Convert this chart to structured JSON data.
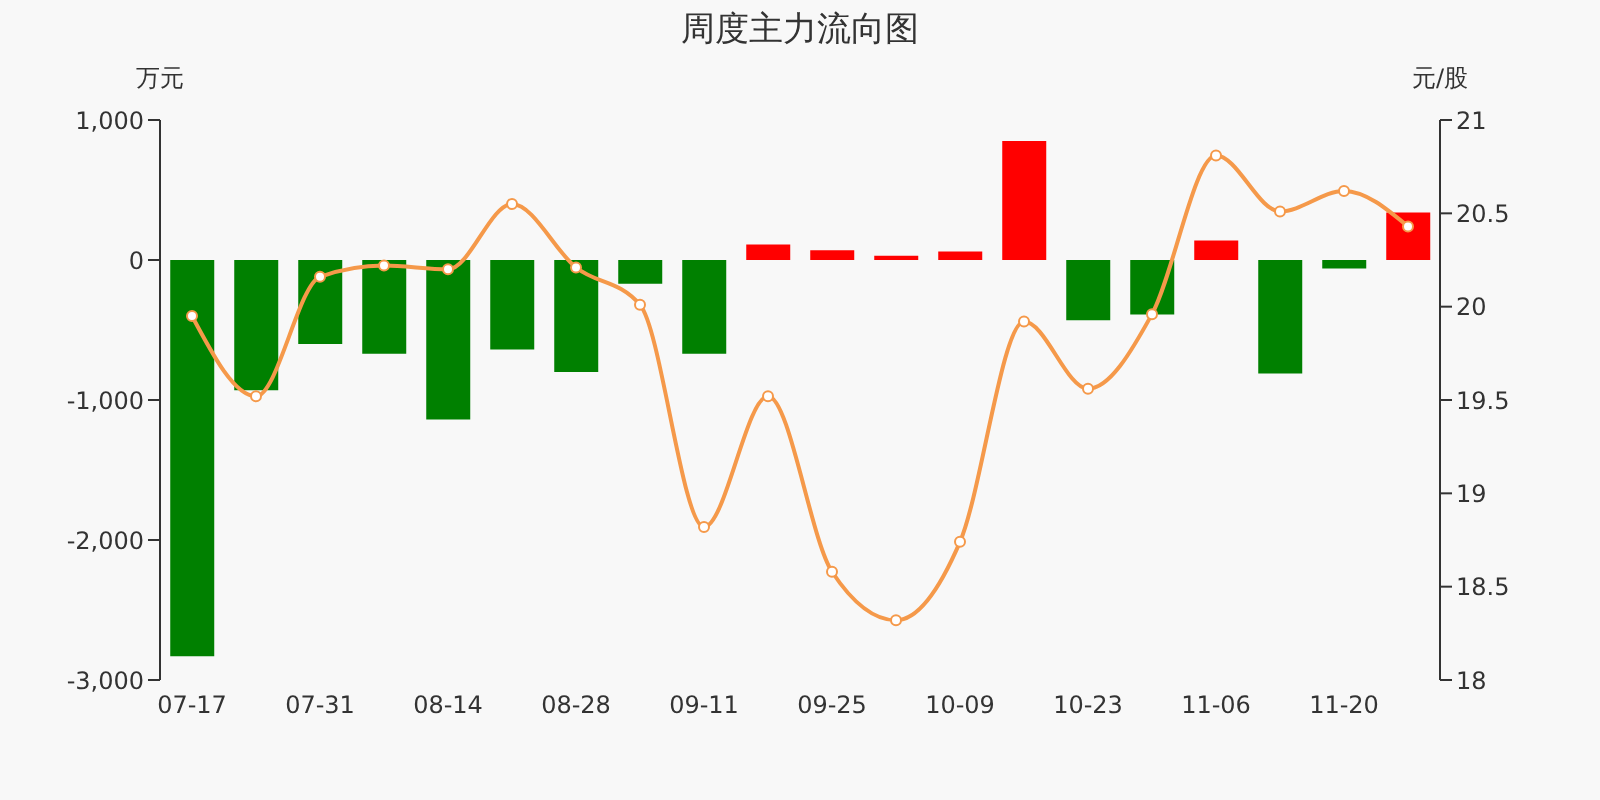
{
  "chart_data": {
    "type": "bar",
    "title": "周度主力流向图",
    "ylabel": "万元",
    "y2label": "元/股",
    "categories": [
      "07-17",
      null,
      "07-31",
      null,
      "08-14",
      null,
      "08-28",
      null,
      "09-11",
      null,
      "09-25",
      null,
      "10-09",
      null,
      "10-23",
      null,
      "11-06",
      null,
      "11-20",
      null
    ],
    "series": [
      {
        "values": [
          -2830,
          -930,
          -600,
          -670,
          -1140,
          -640,
          -800,
          -170,
          -670,
          110,
          70,
          30,
          60,
          850,
          -430,
          -390,
          140,
          -810,
          -60,
          340
        ],
        "colors": [
          "#008000",
          "#008000",
          "#008000",
          "#008000",
          "#008000",
          "#008000",
          "#008000",
          "#008000",
          "#008000",
          "#ff0000",
          "#ff0000",
          "#ff0000",
          "#ff0000",
          "#ff0000",
          "#008000",
          "#008000",
          "#ff0000",
          "#008000",
          "#008000",
          "#ff0000"
        ]
      },
      {
        "type": "line",
        "axis": "y2",
        "color": "#f5994a",
        "marker": "circle",
        "values": [
          19.95,
          19.52,
          20.16,
          20.22,
          20.2,
          20.55,
          20.21,
          20.01,
          18.82,
          19.52,
          18.58,
          18.32,
          18.74,
          19.92,
          19.56,
          19.96,
          20.81,
          20.51,
          20.62,
          20.43
        ]
      }
    ],
    "ylim": [
      -3000,
      1000
    ],
    "yticks": [
      {
        "value": -3000,
        "label": "-3,000"
      },
      {
        "value": -2000,
        "label": "-2,000"
      },
      {
        "value": -1000,
        "label": "-1,000"
      },
      0,
      {
        "value": 1000,
        "label": "1,000"
      }
    ],
    "y2lim": [
      18,
      21
    ],
    "y2ticks": [
      18,
      18.5,
      19,
      19.5,
      20,
      20.5,
      21
    ],
    "grid": false,
    "legend": false
  }
}
